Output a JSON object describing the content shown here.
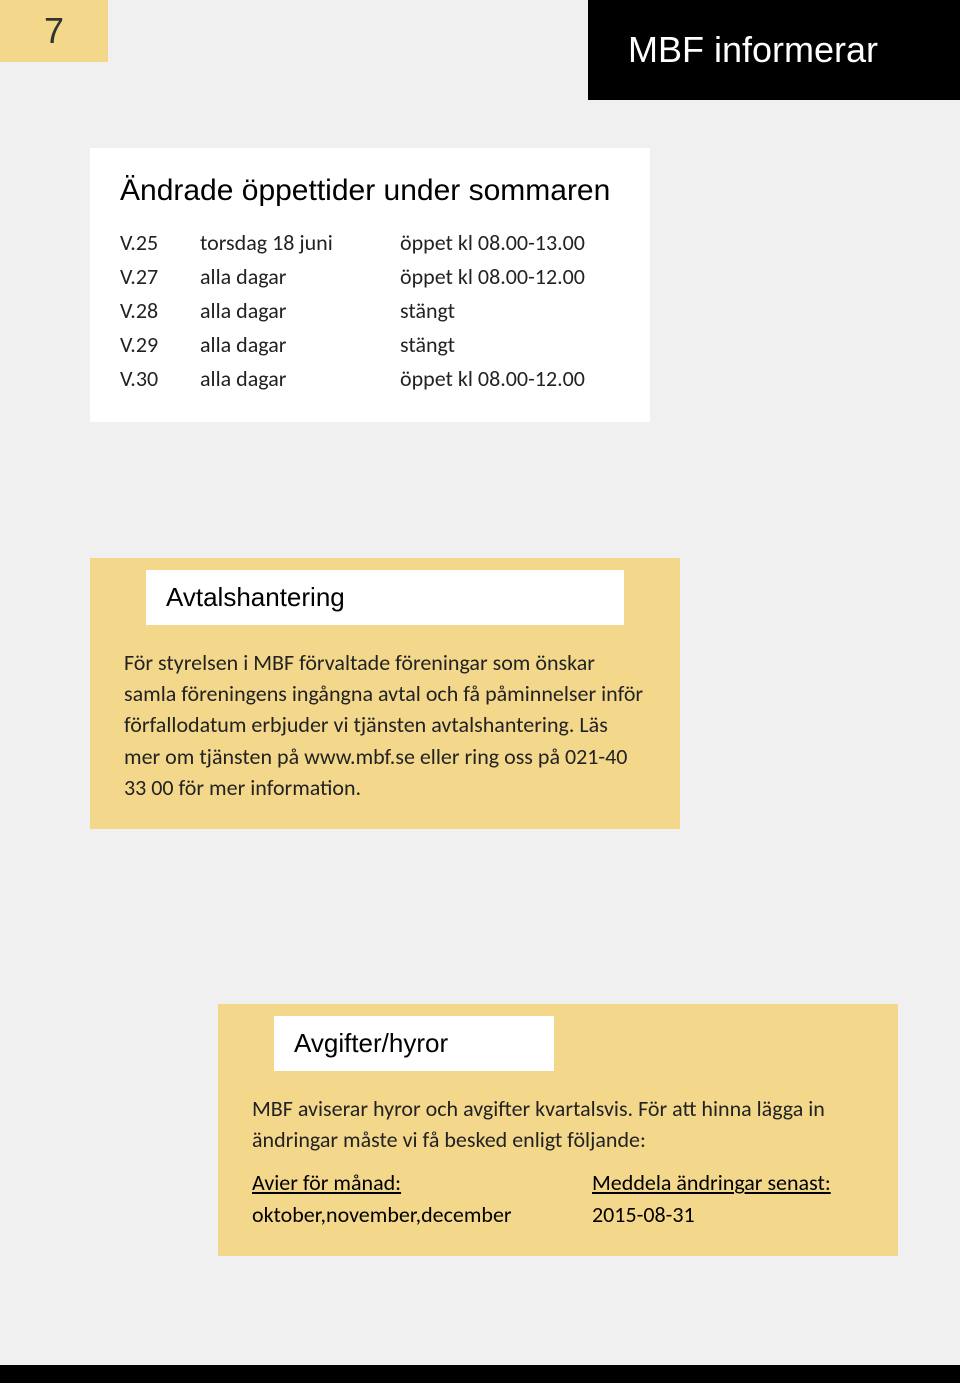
{
  "page_number": "7",
  "header_title": "MBF informerar",
  "hours": {
    "title": "Ändrade öppettider under sommaren",
    "rows": [
      {
        "week": "V.25",
        "days": "torsdag 18 juni",
        "time": "öppet kl 08.00-13.00"
      },
      {
        "week": "V.27",
        "days": "alla dagar",
        "time": "öppet kl 08.00-12.00"
      },
      {
        "week": "V.28",
        "days": "alla dagar",
        "time": "stängt"
      },
      {
        "week": "V.29",
        "days": "alla dagar",
        "time": "stängt"
      },
      {
        "week": "V.30",
        "days": "alla dagar",
        "time": "öppet kl 08.00-12.00"
      }
    ]
  },
  "avtal": {
    "title": "Avtalshantering",
    "body": "För styrelsen i MBF förvaltade föreningar som önskar samla föreningens ingångna avtal och få påminnelser inför förfallodatum erbjuder vi tjänsten avtalshantering. Läs mer om tjänsten på www.mbf.se eller ring oss på 021-40 33 00 för mer information."
  },
  "fees": {
    "title": "Avgifter/hyror",
    "body": "MBF aviserar hyror och avgifter kvartalsvis. För att hinna lägga in ändringar måste vi få besked enligt följande:",
    "col_left_head": "Avier för månad:",
    "col_right_head": "Meddela ändringar senast:",
    "col_left_val": "oktober,november,december",
    "col_right_val": "2015-08-31"
  },
  "colors": {
    "sand": "#f3d88c",
    "page_bg": "#f0f0f0",
    "black": "#000000",
    "white": "#ffffff"
  }
}
